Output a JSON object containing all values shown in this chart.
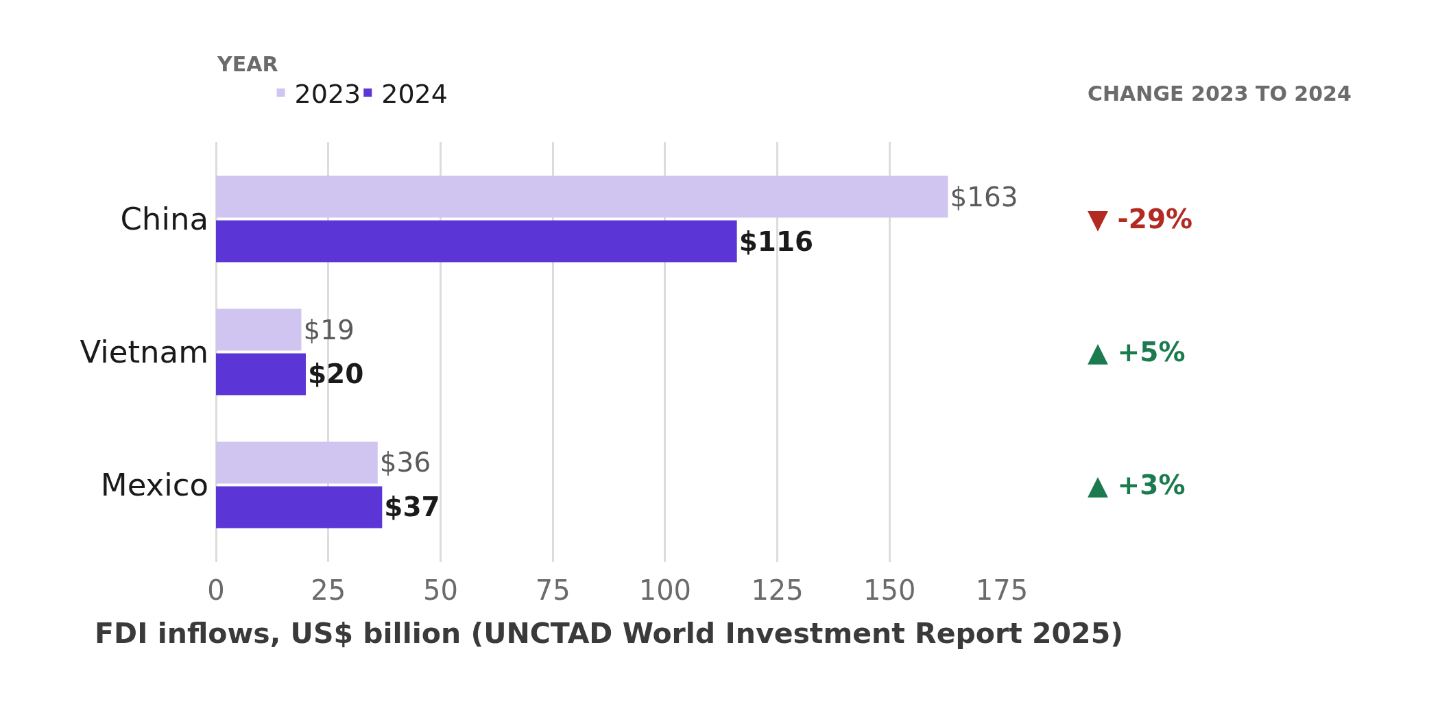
{
  "chart_data": {
    "type": "bar",
    "orientation": "horizontal",
    "categories": [
      "China",
      "Vietnam",
      "Mexico"
    ],
    "series": [
      {
        "name": "2023",
        "color": "#d0c5f0",
        "values": [
          163,
          19,
          36
        ],
        "value_labels": [
          "$163",
          "$19",
          "$36"
        ]
      },
      {
        "name": "2024",
        "color": "#5b35d5",
        "values": [
          116,
          20,
          37
        ],
        "value_labels": [
          "$116",
          "$20",
          "$37"
        ]
      }
    ],
    "xlabel": "FDI inflows, US$ billion (UNCTAD World Investment Report 2025)",
    "legend_title": "YEAR",
    "legend": "top left",
    "xlim": [
      0,
      175
    ],
    "xticks": [
      0,
      25,
      50,
      75,
      100,
      125,
      150,
      175
    ],
    "grid": "x",
    "annotations": [
      "CHANGE 2023 TO 2024",
      "▼ -29%",
      "▲ +5%",
      "▲ +3%"
    ]
  }
}
